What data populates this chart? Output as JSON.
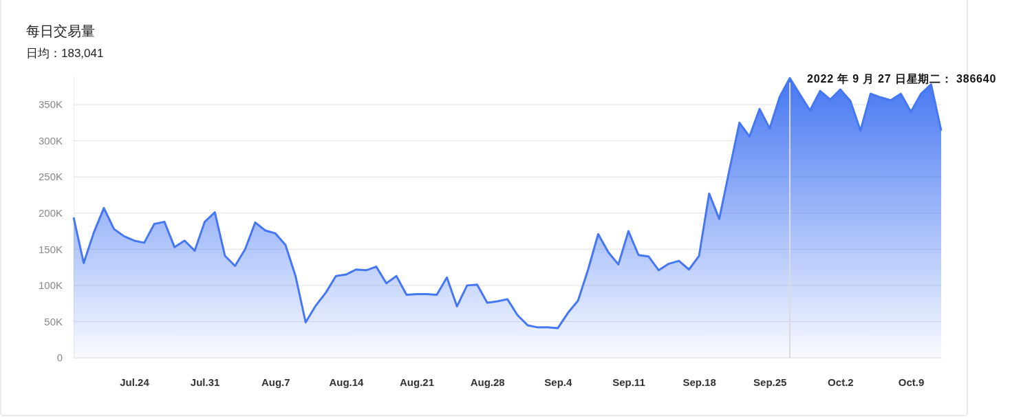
{
  "chart_data": {
    "type": "area",
    "title": "每日交易量",
    "subtitle": "日均：183,041",
    "x": [
      "2022-07-18",
      "2022-07-19",
      "2022-07-20",
      "2022-07-21",
      "2022-07-22",
      "2022-07-23",
      "2022-07-24",
      "2022-07-25",
      "2022-07-26",
      "2022-07-27",
      "2022-07-28",
      "2022-07-29",
      "2022-07-30",
      "2022-07-31",
      "2022-08-01",
      "2022-08-02",
      "2022-08-03",
      "2022-08-04",
      "2022-08-05",
      "2022-08-06",
      "2022-08-07",
      "2022-08-08",
      "2022-08-09",
      "2022-08-10",
      "2022-08-11",
      "2022-08-12",
      "2022-08-13",
      "2022-08-14",
      "2022-08-15",
      "2022-08-16",
      "2022-08-17",
      "2022-08-18",
      "2022-08-19",
      "2022-08-20",
      "2022-08-21",
      "2022-08-22",
      "2022-08-23",
      "2022-08-24",
      "2022-08-25",
      "2022-08-26",
      "2022-08-27",
      "2022-08-28",
      "2022-08-29",
      "2022-08-30",
      "2022-08-31",
      "2022-09-01",
      "2022-09-02",
      "2022-09-03",
      "2022-09-04",
      "2022-09-05",
      "2022-09-06",
      "2022-09-07",
      "2022-09-08",
      "2022-09-09",
      "2022-09-10",
      "2022-09-11",
      "2022-09-12",
      "2022-09-13",
      "2022-09-14",
      "2022-09-15",
      "2022-09-16",
      "2022-09-17",
      "2022-09-18",
      "2022-09-19",
      "2022-09-20",
      "2022-09-21",
      "2022-09-22",
      "2022-09-23",
      "2022-09-24",
      "2022-09-25",
      "2022-09-26",
      "2022-09-27",
      "2022-09-28",
      "2022-09-29",
      "2022-09-30",
      "2022-10-01",
      "2022-10-02",
      "2022-10-03",
      "2022-10-04",
      "2022-10-05",
      "2022-10-06",
      "2022-10-07",
      "2022-10-08",
      "2022-10-09",
      "2022-10-10",
      "2022-10-11",
      "2022-10-12"
    ],
    "series": [
      {
        "color": "#4677f2",
        "values": [
          194000,
          131000,
          173000,
          207000,
          178000,
          168000,
          162000,
          159000,
          185000,
          188000,
          153000,
          162000,
          148000,
          188000,
          201000,
          141000,
          127000,
          150000,
          187000,
          176000,
          172000,
          156000,
          113000,
          49000,
          72000,
          90000,
          113000,
          115000,
          122000,
          121000,
          126000,
          103000,
          113000,
          87000,
          88000,
          88000,
          87000,
          111000,
          71000,
          100000,
          101000,
          76000,
          78000,
          81000,
          59000,
          45000,
          42000,
          42000,
          41000,
          62000,
          79000,
          122000,
          171000,
          146000,
          129000,
          175000,
          142000,
          140000,
          121000,
          130000,
          134000,
          122000,
          141000,
          227000,
          192000,
          259000,
          325000,
          306000,
          344000,
          317000,
          361000,
          386640,
          364000,
          342000,
          369000,
          357000,
          371000,
          355000,
          314000,
          365000,
          360000,
          356000,
          365000,
          340000,
          365000,
          378000,
          314000
        ]
      }
    ],
    "xlim": [
      "2022-07-18",
      "2022-10-12"
    ],
    "xticks": [
      {
        "value": "2022-07-24",
        "label": "Jul.24"
      },
      {
        "value": "2022-07-31",
        "label": "Jul.31"
      },
      {
        "value": "2022-08-07",
        "label": "Aug.7"
      },
      {
        "value": "2022-08-14",
        "label": "Aug.14"
      },
      {
        "value": "2022-08-21",
        "label": "Aug.21"
      },
      {
        "value": "2022-08-28",
        "label": "Aug.28"
      },
      {
        "value": "2022-09-04",
        "label": "Sep.4"
      },
      {
        "value": "2022-09-11",
        "label": "Sep.11"
      },
      {
        "value": "2022-09-18",
        "label": "Sep.18"
      },
      {
        "value": "2022-09-25",
        "label": "Sep.25"
      },
      {
        "value": "2022-10-02",
        "label": "Oct.2"
      },
      {
        "value": "2022-10-09",
        "label": "Oct.9"
      }
    ],
    "ylim": [
      0,
      390000
    ],
    "yticks": [
      0,
      {
        "value": 50000,
        "label": "50K"
      },
      {
        "value": 100000,
        "label": "100K"
      },
      {
        "value": 150000,
        "label": "150K"
      },
      {
        "value": 200000,
        "label": "200K"
      },
      {
        "value": 250000,
        "label": "250K"
      },
      {
        "value": 300000,
        "label": "300K"
      },
      {
        "value": 350000,
        "label": "350K"
      }
    ],
    "grid": "y",
    "ref_lines": [
      {
        "axis": "x",
        "value": "2022-09-27",
        "color": "#dcdcdc"
      }
    ],
    "annotations": [
      {
        "text": "2022 年 9 月 27 日星期二： 386640",
        "x": "2022-09-27",
        "y": 386640
      }
    ]
  }
}
